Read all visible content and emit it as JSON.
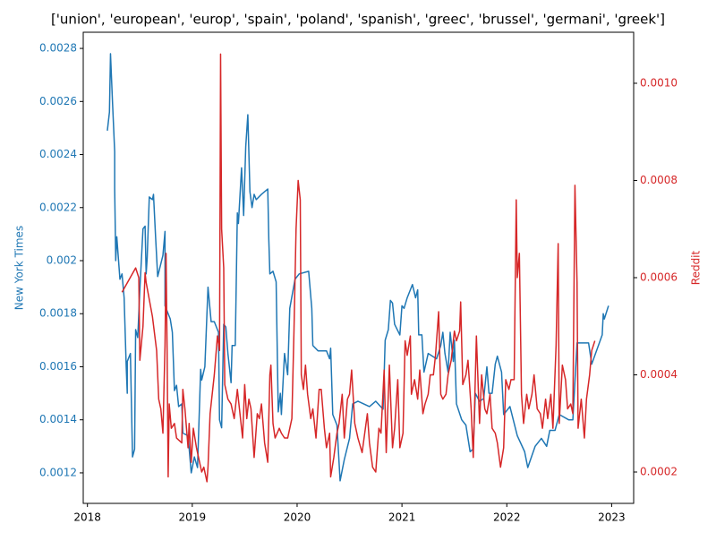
{
  "chart_data": {
    "type": "line",
    "title": "['union', 'european', 'europ', 'spain', 'poland', 'spanish', 'greec', 'brussel', 'germani', 'greek']",
    "ylabel": "New York Times",
    "y2label": "Reddit",
    "xlim": [
      2017.96,
      2023.21
    ],
    "xticks": [
      2018,
      2019,
      2020,
      2021,
      2022,
      2023
    ],
    "ylim": [
      0.001085,
      0.002861
    ],
    "yticks": [
      0.0012,
      0.0014,
      0.0016,
      0.0018,
      0.002,
      0.0022,
      0.0024,
      0.0026,
      0.0028
    ],
    "y2lim": [
      0.0001355,
      0.001105
    ],
    "y2ticks": [
      0.0002,
      0.0004,
      0.0006,
      0.0008,
      {
        "value": 0.001,
        "label": "0.0010"
      }
    ],
    "yticks_labels_format": null,
    "series": [
      {
        "color": "#1f77b4",
        "x": [
          2018.19,
          2018.21,
          2018.22,
          2018.24,
          2018.26,
          2018.26,
          2018.27,
          2018.28,
          2018.31,
          2018.33,
          2018.35,
          2018.37,
          2018.38,
          2018.38,
          2018.41,
          2018.43,
          2018.45,
          2018.46,
          2018.48,
          2018.5,
          2018.53,
          2018.55,
          2018.56,
          2018.57,
          2018.59,
          2018.62,
          2018.63,
          2018.65,
          2018.67,
          2018.72,
          2018.74,
          2018.74,
          2018.79,
          2018.81,
          2018.83,
          2018.85,
          2018.87,
          2018.9,
          2018.91,
          2018.96,
          2018.99,
          2019.02,
          2019.05,
          2019.08,
          2019.09,
          2019.12,
          2019.15,
          2019.18,
          2019.21,
          2019.25,
          2019.26,
          2019.28,
          2019.3,
          2019.32,
          2019.34,
          2019.37,
          2019.38,
          2019.41,
          2019.43,
          2019.44,
          2019.47,
          2019.49,
          2019.51,
          2019.53,
          2019.55,
          2019.57,
          2019.59,
          2019.61,
          2019.66,
          2019.72,
          2019.73,
          2019.74,
          2019.77,
          2019.8,
          2019.82,
          2019.84,
          2019.85,
          2019.88,
          2019.91,
          2019.93,
          2019.98,
          2020.02,
          2020.11,
          2020.14,
          2020.15,
          2020.2,
          2020.28,
          2020.31,
          2020.32,
          2020.34,
          2020.38,
          2020.41,
          2020.45,
          2020.5,
          2020.53,
          2020.58,
          2020.69,
          2020.75,
          2020.82,
          2020.84,
          2020.87,
          2020.89,
          2020.91,
          2020.93,
          2020.98,
          2021.0,
          2021.02,
          2021.05,
          2021.1,
          2021.13,
          2021.15,
          2021.16,
          2021.19,
          2021.21,
          2021.25,
          2021.33,
          2021.37,
          2021.39,
          2021.41,
          2021.44,
          2021.46,
          2021.49,
          2021.5,
          2021.52,
          2021.57,
          2021.61,
          2021.65,
          2021.68,
          2021.7,
          2021.74,
          2021.78,
          2021.81,
          2021.83,
          2021.86,
          2021.89,
          2021.91,
          2021.95,
          2021.97,
          2022.03,
          2022.1,
          2022.17,
          2022.2,
          2022.27,
          2022.33,
          2022.38,
          2022.41,
          2022.46,
          2022.5,
          2022.59,
          2022.63,
          2022.67,
          2022.78,
          2022.81,
          2022.91,
          2022.92,
          2022.93,
          2022.97
        ],
        "values": [
          0.00249,
          0.00256,
          0.00278,
          0.00259,
          0.00241,
          0.00227,
          0.002,
          0.00209,
          0.00193,
          0.00195,
          0.00186,
          0.0016,
          0.0015,
          0.00162,
          0.00165,
          0.00126,
          0.00129,
          0.00174,
          0.00171,
          0.00189,
          0.00212,
          0.00213,
          0.00195,
          0.00201,
          0.00224,
          0.00223,
          0.00225,
          0.00209,
          0.00194,
          0.00202,
          0.00211,
          0.00183,
          0.00178,
          0.00173,
          0.00151,
          0.00153,
          0.00145,
          0.00146,
          0.00135,
          0.00134,
          0.0012,
          0.00126,
          0.00122,
          0.00159,
          0.00155,
          0.0016,
          0.0019,
          0.00177,
          0.00177,
          0.00173,
          0.0014,
          0.00137,
          0.00176,
          0.00175,
          0.00165,
          0.00154,
          0.00168,
          0.00168,
          0.00218,
          0.00214,
          0.00235,
          0.00217,
          0.00243,
          0.00255,
          0.00226,
          0.0022,
          0.00225,
          0.00223,
          0.00225,
          0.00227,
          0.00208,
          0.00195,
          0.00196,
          0.00192,
          0.00143,
          0.0015,
          0.00142,
          0.00165,
          0.00157,
          0.00182,
          0.00193,
          0.00195,
          0.00196,
          0.00182,
          0.00168,
          0.00166,
          0.00166,
          0.00163,
          0.00167,
          0.00142,
          0.00138,
          0.00117,
          0.00125,
          0.00133,
          0.00146,
          0.00147,
          0.00145,
          0.00147,
          0.00144,
          0.0017,
          0.00174,
          0.00185,
          0.00184,
          0.00176,
          0.00172,
          0.00183,
          0.00182,
          0.00186,
          0.00191,
          0.00186,
          0.00189,
          0.00172,
          0.00172,
          0.00158,
          0.00165,
          0.00163,
          0.00168,
          0.00173,
          0.00165,
          0.00158,
          0.00173,
          0.00162,
          0.0017,
          0.00146,
          0.0014,
          0.00138,
          0.00128,
          0.00129,
          0.0015,
          0.00147,
          0.00148,
          0.0016,
          0.0015,
          0.0015,
          0.00161,
          0.00164,
          0.00158,
          0.00142,
          0.00145,
          0.00134,
          0.00128,
          0.00122,
          0.0013,
          0.00133,
          0.0013,
          0.00136,
          0.00136,
          0.00142,
          0.0014,
          0.0014,
          0.00169,
          0.00169,
          0.00161,
          0.00172,
          0.0018,
          0.00178,
          0.00183
        ]
      },
      {
        "color": "#d62728",
        "axis": "y2",
        "x": [
          2018.33,
          2018.46,
          2018.49,
          2018.5,
          2018.53,
          2018.55,
          2018.56,
          2018.62,
          2018.66,
          2018.68,
          2018.7,
          2018.72,
          2018.74,
          2018.75,
          2018.76,
          2018.77,
          2018.78,
          2018.8,
          2018.83,
          2018.85,
          2018.9,
          2018.91,
          2018.93,
          2018.96,
          2018.97,
          2018.99,
          2019.01,
          2019.04,
          2019.09,
          2019.11,
          2019.14,
          2019.15,
          2019.17,
          2019.21,
          2019.24,
          2019.26,
          2019.27,
          2019.28,
          2019.3,
          2019.31,
          2019.34,
          2019.37,
          2019.4,
          2019.43,
          2019.45,
          2019.48,
          2019.5,
          2019.52,
          2019.54,
          2019.56,
          2019.59,
          2019.62,
          2019.64,
          2019.66,
          2019.69,
          2019.72,
          2019.74,
          2019.75,
          2019.77,
          2019.79,
          2019.83,
          2019.85,
          2019.88,
          2019.91,
          2019.95,
          2019.97,
          2019.99,
          2020.01,
          2020.03,
          2020.04,
          2020.06,
          2020.08,
          2020.1,
          2020.13,
          2020.15,
          2020.18,
          2020.21,
          2020.23,
          2020.26,
          2020.28,
          2020.31,
          2020.32,
          2020.35,
          2020.38,
          2020.4,
          2020.43,
          2020.45,
          2020.48,
          2020.5,
          2020.52,
          2020.55,
          2020.58,
          2020.62,
          2020.67,
          2020.69,
          2020.72,
          2020.75,
          2020.78,
          2020.8,
          2020.83,
          2020.85,
          2020.88,
          2020.91,
          2020.93,
          2020.96,
          2020.98,
          2021.01,
          2021.03,
          2021.05,
          2021.08,
          2021.09,
          2021.12,
          2021.15,
          2021.17,
          2021.2,
          2021.22,
          2021.25,
          2021.27,
          2021.3,
          2021.32,
          2021.35,
          2021.37,
          2021.39,
          2021.42,
          2021.44,
          2021.47,
          2021.5,
          2021.52,
          2021.55,
          2021.56,
          2021.58,
          2021.61,
          2021.63,
          2021.66,
          2021.68,
          2021.71,
          2021.74,
          2021.76,
          2021.79,
          2021.81,
          2021.84,
          2021.86,
          2021.89,
          2021.91,
          2021.94,
          2021.97,
          2021.99,
          2022.02,
          2022.04,
          2022.07,
          2022.09,
          2022.1,
          2022.12,
          2022.14,
          2022.16,
          2022.19,
          2022.21,
          2022.24,
          2022.26,
          2022.29,
          2022.32,
          2022.34,
          2022.37,
          2022.39,
          2022.42,
          2022.44,
          2022.47,
          2022.49,
          2022.5,
          2022.53,
          2022.56,
          2022.58,
          2022.61,
          2022.63,
          2022.65,
          2022.67,
          2022.68,
          2022.71,
          2022.74,
          2022.76,
          2022.79,
          2022.81,
          2022.84
        ],
        "values": [
          0.00057,
          0.00062,
          0.0006,
          0.00043,
          0.0005,
          0.00061,
          0.00059,
          0.00052,
          0.00045,
          0.00035,
          0.00033,
          0.00028,
          0.00046,
          0.00065,
          0.00045,
          0.00019,
          0.00034,
          0.00029,
          0.0003,
          0.00027,
          0.00026,
          0.00037,
          0.00033,
          0.00025,
          0.0003,
          0.00022,
          0.00029,
          0.00025,
          0.0002,
          0.00021,
          0.00018,
          0.00021,
          0.00032,
          0.0004,
          0.00048,
          0.00045,
          0.00106,
          0.0007,
          0.00062,
          0.00038,
          0.00035,
          0.00034,
          0.00031,
          0.00037,
          0.00033,
          0.00027,
          0.00038,
          0.00031,
          0.00035,
          0.00033,
          0.00023,
          0.00032,
          0.00031,
          0.00034,
          0.00026,
          0.00022,
          0.0004,
          0.00042,
          0.0003,
          0.00027,
          0.00029,
          0.00028,
          0.00027,
          0.00027,
          0.00031,
          0.00049,
          0.0007,
          0.0008,
          0.00076,
          0.0004,
          0.00037,
          0.00042,
          0.00036,
          0.00031,
          0.00033,
          0.00027,
          0.00037,
          0.00037,
          0.00029,
          0.00025,
          0.00028,
          0.00019,
          0.00023,
          0.00028,
          0.0003,
          0.00036,
          0.00027,
          0.00035,
          0.00036,
          0.00041,
          0.0003,
          0.00027,
          0.00024,
          0.00032,
          0.00026,
          0.00021,
          0.0002,
          0.00029,
          0.00028,
          0.00041,
          0.00024,
          0.00042,
          0.00025,
          0.00029,
          0.00039,
          0.00025,
          0.00028,
          0.00047,
          0.00044,
          0.00048,
          0.00036,
          0.00039,
          0.00035,
          0.00041,
          0.00032,
          0.00034,
          0.00036,
          0.0004,
          0.0004,
          0.00044,
          0.00053,
          0.00036,
          0.00035,
          0.00036,
          0.0004,
          0.00043,
          0.00049,
          0.00047,
          0.00049,
          0.00055,
          0.00038,
          0.0004,
          0.00043,
          0.00033,
          0.00023,
          0.00048,
          0.0003,
          0.0004,
          0.00033,
          0.00032,
          0.00036,
          0.00029,
          0.00028,
          0.00026,
          0.00021,
          0.00025,
          0.00039,
          0.00037,
          0.00039,
          0.00039,
          0.00076,
          0.0006,
          0.00065,
          0.00036,
          0.0003,
          0.00036,
          0.00033,
          0.00036,
          0.0004,
          0.00033,
          0.00032,
          0.00029,
          0.00035,
          0.00031,
          0.00036,
          0.00029,
          0.00046,
          0.00067,
          0.0003,
          0.00042,
          0.00039,
          0.00033,
          0.00034,
          0.00032,
          0.00079,
          0.00059,
          0.00029,
          0.00035,
          0.00027,
          0.00035,
          0.0004,
          0.00045,
          0.00047
        ]
      }
    ]
  }
}
